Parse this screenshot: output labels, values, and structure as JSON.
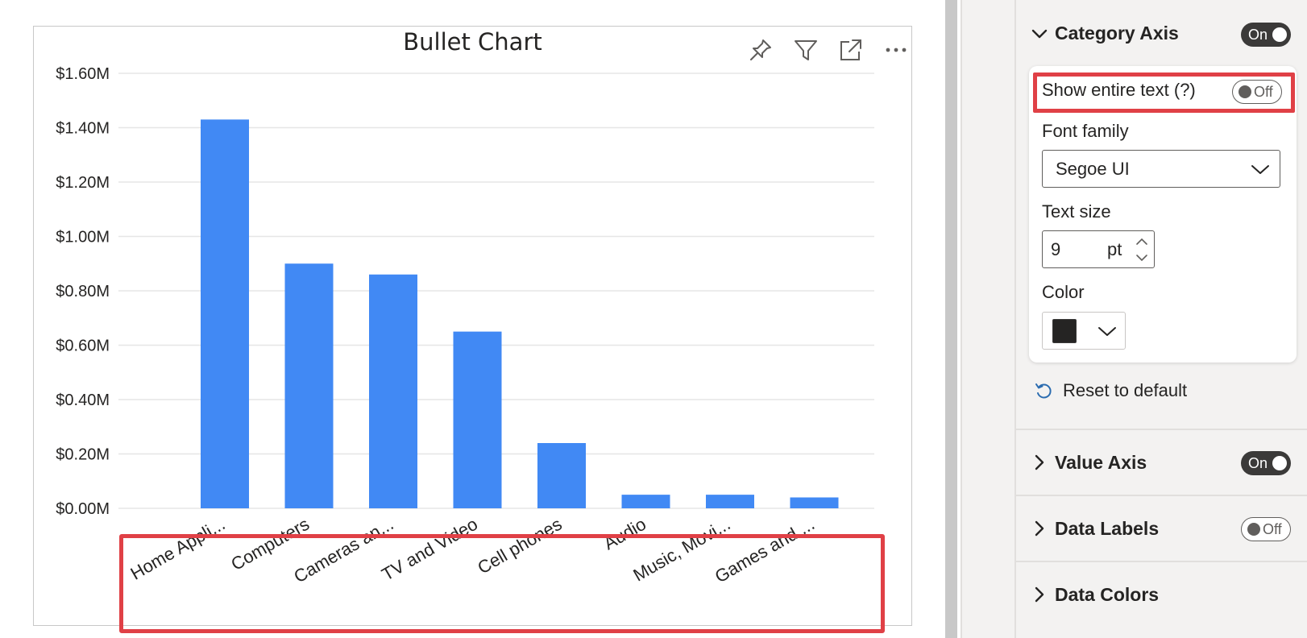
{
  "visual": {
    "title": "Bullet Chart",
    "header_icons": [
      "pin-icon",
      "filter-icon",
      "focus-mode-icon",
      "more-options-icon"
    ]
  },
  "chart_data": {
    "type": "bar",
    "title": "Bullet Chart",
    "categories": [
      "Home Appli...",
      "Computers",
      "Cameras an...",
      "TV and Video",
      "Cell phones",
      "Audio",
      "Music, Movi...",
      "Games and ..."
    ],
    "values": [
      1.43,
      0.9,
      0.86,
      0.65,
      0.24,
      0.05,
      0.05,
      0.04
    ],
    "yticks": [
      "$0.00M",
      "$0.20M",
      "$0.40M",
      "$0.60M",
      "$0.80M",
      "$1.00M",
      "$1.20M",
      "$1.40M",
      "$1.60M"
    ],
    "ylim": [
      0,
      1.6
    ],
    "xlabel": "",
    "ylabel": "",
    "grid": true,
    "bar_color": "#4189f4"
  },
  "format_pane": {
    "category_axis": {
      "title": "Category Axis",
      "toggle": "On",
      "expanded": true,
      "show_entire_text_label": "Show entire text (?)",
      "show_entire_text_toggle": "Off",
      "font_family_label": "Font family",
      "font_family_value": "Segoe UI",
      "text_size_label": "Text size",
      "text_size_value": "9",
      "text_size_unit": "pt",
      "color_label": "Color",
      "color_value": "#252423"
    },
    "reset_label": "Reset to default",
    "value_axis": {
      "title": "Value Axis",
      "toggle": "On"
    },
    "data_labels": {
      "title": "Data Labels",
      "toggle": "Off"
    },
    "data_colors": {
      "title": "Data Colors"
    }
  },
  "colors": {
    "highlight": "#e04046",
    "bar": "#4189f4",
    "pane_background": "#f3f2f1"
  }
}
